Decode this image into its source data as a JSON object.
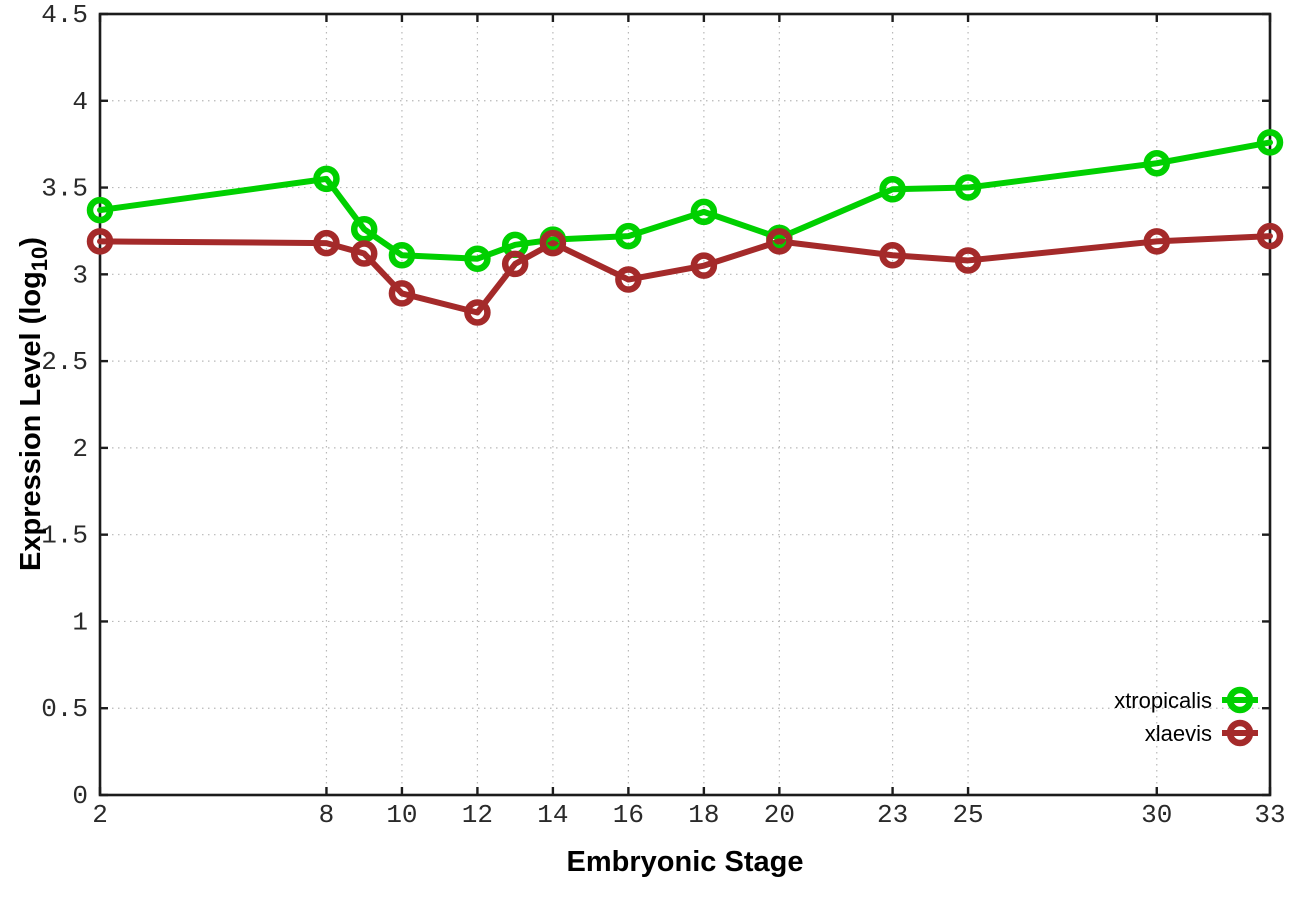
{
  "figure": {
    "background": "#ffffff",
    "border_color": "#1c1c1c",
    "grid_color": "#b8b8b8"
  },
  "chart_data": {
    "type": "line",
    "title": "",
    "xlabel": "Embryonic Stage",
    "ylabel": "Expression Level (log10)",
    "ylabel_parts": {
      "pre": "Expression Level (log",
      "sub": "10",
      "post": ")"
    },
    "xlim": [
      2,
      33
    ],
    "ylim": [
      0,
      4.5
    ],
    "grid": true,
    "legend_position": "bottom-right",
    "marker": "open-circle",
    "x": [
      2,
      8,
      9,
      10,
      12,
      13,
      14,
      16,
      18,
      20,
      23,
      25,
      30,
      33
    ],
    "series": [
      {
        "name": "xtropicalis",
        "color": "#00d000",
        "values": [
          3.37,
          3.55,
          3.26,
          3.11,
          3.09,
          3.17,
          3.2,
          3.22,
          3.36,
          3.21,
          3.49,
          3.5,
          3.64,
          3.76
        ]
      },
      {
        "name": "xlaevis",
        "color": "#a42a2a",
        "values": [
          3.19,
          3.18,
          3.12,
          2.89,
          2.78,
          3.06,
          3.18,
          2.97,
          3.05,
          3.19,
          3.11,
          3.08,
          3.19,
          3.22
        ]
      }
    ],
    "x_tick_labels": [
      "2",
      "8",
      "10",
      "12",
      "14",
      "16",
      "18",
      "20",
      "23",
      "25",
      "30",
      "33"
    ],
    "x_tick_values": [
      2,
      8,
      10,
      12,
      14,
      16,
      18,
      20,
      23,
      25,
      30,
      33
    ],
    "y_tick_labels": [
      "0",
      "0.5",
      "1",
      "1.5",
      "2",
      "2.5",
      "3",
      "3.5",
      "4",
      "4.5"
    ],
    "y_tick_values": [
      0,
      0.5,
      1,
      1.5,
      2,
      2.5,
      3,
      3.5,
      4,
      4.5
    ]
  }
}
